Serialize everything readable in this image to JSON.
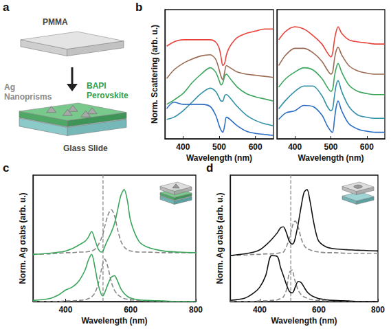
{
  "diagram": {
    "panel": "a",
    "labels": {
      "top_layer": "PMMA",
      "particles": "Ag Nanoprisms",
      "film": "BAPI Perovskite",
      "substrate": "Glass Slide"
    }
  },
  "chart_data": [
    {
      "type": "line",
      "panel": "b",
      "ylabel": "Norm. Scattering (arb. u.)",
      "xlabel": "Wavelength (nm)",
      "xlim": [
        350,
        650
      ],
      "xticks": [
        400,
        500,
        600
      ],
      "ylim": [
        0,
        6
      ],
      "tick_labels": "x",
      "grid": false,
      "x": [
        355,
        375,
        400,
        425,
        450,
        475,
        490,
        500,
        505,
        510,
        515,
        520,
        530,
        550,
        575,
        600,
        625,
        650
      ],
      "series": [
        {
          "color": "#e8433b",
          "line_style": "solid",
          "values": [
            4.3,
            4.5,
            4.6,
            4.6,
            4.6,
            4.6,
            4.5,
            4.2,
            3.8,
            3.4,
            3.5,
            3.9,
            4.3,
            4.7,
            4.9,
            5.0,
            5.1,
            5.1
          ]
        },
        {
          "color": "#9b6a52",
          "line_style": "solid",
          "values": [
            2.8,
            3.2,
            3.5,
            3.7,
            3.85,
            3.9,
            3.7,
            3.2,
            2.9,
            2.75,
            3.1,
            3.4,
            3.3,
            3.1,
            3.0,
            2.95,
            2.9,
            2.85
          ]
        },
        {
          "color": "#3ba55c",
          "line_style": "solid",
          "values": [
            1.6,
            1.8,
            2.1,
            2.6,
            3.0,
            3.3,
            3.1,
            2.7,
            2.5,
            2.6,
            2.9,
            3.0,
            2.8,
            2.4,
            2.1,
            1.95,
            1.85,
            1.75
          ]
        },
        {
          "color": "#2e8fa6",
          "line_style": "solid",
          "values": [
            0.9,
            1.0,
            1.3,
            1.7,
            2.1,
            2.35,
            2.2,
            1.9,
            1.75,
            1.75,
            2.0,
            2.05,
            1.9,
            1.5,
            1.1,
            0.85,
            0.7,
            0.6
          ]
        },
        {
          "color": "#2a6cc4",
          "line_style": "solid",
          "values": [
            1.4,
            1.7,
            1.6,
            1.6,
            1.6,
            1.5,
            1.1,
            0.6,
            0.4,
            0.3,
            0.6,
            1.0,
            0.9,
            0.6,
            0.35,
            0.25,
            0.2,
            0.15
          ]
        }
      ]
    },
    {
      "type": "line",
      "xlabel": "Wavelength (nm)",
      "xlim": [
        350,
        650
      ],
      "xticks": [
        400,
        500,
        600
      ],
      "ylim": [
        0,
        6
      ],
      "tick_labels": "x",
      "grid": false,
      "x": [
        355,
        375,
        400,
        425,
        450,
        475,
        490,
        500,
        505,
        510,
        515,
        520,
        530,
        550,
        575,
        600,
        625,
        650
      ],
      "series": [
        {
          "color": "#e8433b",
          "line_style": "solid",
          "values": [
            4.6,
            5.0,
            5.2,
            5.1,
            4.8,
            4.4,
            4.0,
            3.8,
            4.0,
            4.6,
            5.0,
            5.2,
            4.9,
            4.6,
            4.5,
            4.45,
            4.4,
            4.4
          ]
        },
        {
          "color": "#9b6a52",
          "line_style": "solid",
          "values": [
            3.4,
            3.9,
            4.2,
            4.2,
            4.0,
            3.6,
            3.2,
            3.0,
            3.1,
            3.7,
            4.1,
            4.25,
            3.9,
            3.4,
            3.15,
            3.05,
            3.0,
            3.0
          ]
        },
        {
          "color": "#3ba55c",
          "line_style": "solid",
          "values": [
            2.4,
            2.8,
            3.1,
            3.3,
            3.2,
            2.8,
            2.4,
            2.2,
            2.3,
            2.9,
            3.3,
            3.5,
            3.1,
            2.5,
            2.2,
            2.1,
            2.05,
            2.05
          ]
        },
        {
          "color": "#2e8fa6",
          "line_style": "solid",
          "values": [
            1.4,
            1.8,
            2.2,
            2.45,
            2.45,
            2.0,
            1.5,
            1.3,
            1.4,
            2.0,
            2.5,
            2.7,
            2.2,
            1.5,
            1.1,
            1.0,
            0.95,
            0.95
          ]
        },
        {
          "color": "#2a6cc4",
          "line_style": "solid",
          "values": [
            0.9,
            1.2,
            1.3,
            1.55,
            1.5,
            1.1,
            0.6,
            0.35,
            0.3,
            0.9,
            1.5,
            1.75,
            1.3,
            0.7,
            0.45,
            0.35,
            0.3,
            0.3
          ]
        }
      ]
    },
    {
      "type": "line",
      "panel": "c",
      "ylabel": "Norm. Ag σabs (arb. u.)",
      "xlabel": "Wavelength (nm)",
      "xlim": [
        300,
        800
      ],
      "xticks": [
        400,
        600,
        800
      ],
      "ylim": [
        0,
        2.2
      ],
      "tick_labels": "x",
      "grid": false,
      "x": [
        300,
        350,
        380,
        400,
        420,
        440,
        460,
        470,
        480,
        490,
        500,
        510,
        515,
        520,
        530,
        540,
        550,
        560,
        570,
        580,
        590,
        600,
        625,
        650,
        700,
        750,
        800
      ],
      "series": [
        {
          "color": "#888888",
          "line_style": "dashed",
          "x": [
            515,
            515
          ],
          "values": [
            0,
            2.2
          ]
        },
        {
          "color": "#888888",
          "line_style": "dashed",
          "values": [
            0.82,
            0.83,
            0.84,
            0.85,
            0.85,
            0.86,
            0.86,
            0.87,
            0.88,
            0.91,
            0.98,
            1.1,
            1.18,
            1.3,
            1.5,
            1.6,
            1.5,
            1.25,
            1.05,
            0.95,
            0.9,
            0.88,
            0.86,
            0.86,
            0.85,
            0.85,
            0.85
          ]
        },
        {
          "color": "#3ba55c",
          "line_style": "solid",
          "values": [
            0.82,
            0.84,
            0.86,
            0.88,
            0.92,
            0.98,
            1.05,
            1.12,
            1.22,
            1.08,
            0.92,
            0.86,
            0.88,
            0.95,
            1.08,
            1.2,
            1.35,
            1.6,
            1.85,
            1.95,
            1.75,
            1.4,
            1.05,
            0.95,
            0.88,
            0.86,
            0.85
          ]
        },
        {
          "color": "#888888",
          "line_style": "dashed",
          "values": [
            0,
            0,
            0,
            0.01,
            0.01,
            0.02,
            0.03,
            0.05,
            0.08,
            0.15,
            0.3,
            0.55,
            0.68,
            0.74,
            0.6,
            0.35,
            0.2,
            0.12,
            0.08,
            0.05,
            0.04,
            0.03,
            0.02,
            0.01,
            0,
            0,
            0
          ]
        },
        {
          "color": "#3ba55c",
          "line_style": "solid",
          "values": [
            0.02,
            0.05,
            0.12,
            0.2,
            0.25,
            0.35,
            0.55,
            0.72,
            0.82,
            0.6,
            0.3,
            0.12,
            0.1,
            0.15,
            0.3,
            0.42,
            0.45,
            0.35,
            0.22,
            0.14,
            0.09,
            0.06,
            0.03,
            0.02,
            0.01,
            0,
            0
          ]
        }
      ]
    },
    {
      "type": "line",
      "panel": "d",
      "ylabel": "Norm. Ag σabs (arb. u.)",
      "xlabel": "Wavelength (nm)",
      "xlim": [
        300,
        800
      ],
      "xticks": [
        400,
        600,
        800
      ],
      "ylim": [
        0,
        2.2
      ],
      "tick_labels": "x",
      "grid": false,
      "x": [
        300,
        350,
        380,
        400,
        420,
        440,
        460,
        470,
        480,
        490,
        500,
        510,
        515,
        520,
        530,
        540,
        550,
        560,
        570,
        580,
        590,
        600,
        625,
        650,
        700,
        750,
        800
      ],
      "series": [
        {
          "color": "#888888",
          "line_style": "dashed",
          "x": [
            505,
            505
          ],
          "values": [
            0,
            2.2
          ]
        },
        {
          "color": "#888888",
          "line_style": "dashed",
          "values": [
            0.8,
            0.81,
            0.82,
            0.82,
            0.83,
            0.83,
            0.84,
            0.85,
            0.86,
            0.95,
            1.1,
            1.3,
            1.38,
            1.4,
            1.3,
            1.1,
            0.98,
            0.92,
            0.9,
            0.88,
            0.87,
            0.86,
            0.85,
            0.85,
            0.84,
            0.84,
            0.84
          ]
        },
        {
          "color": "#111111",
          "line_style": "solid",
          "values": [
            0.8,
            0.83,
            0.86,
            0.9,
            0.98,
            1.08,
            1.2,
            1.28,
            1.3,
            1.2,
            1.05,
            1.0,
            1.02,
            1.1,
            1.35,
            1.65,
            1.9,
            1.95,
            1.75,
            1.45,
            1.2,
            1.05,
            0.95,
            0.92,
            0.9,
            0.89,
            0.88
          ]
        },
        {
          "color": "#888888",
          "line_style": "dashed",
          "values": [
            0,
            0,
            0,
            0.01,
            0.01,
            0.02,
            0.03,
            0.05,
            0.08,
            0.2,
            0.5,
            0.55,
            0.45,
            0.35,
            0.2,
            0.12,
            0.08,
            0.06,
            0.04,
            0.03,
            0.02,
            0.02,
            0.01,
            0.01,
            0,
            0,
            0
          ]
        },
        {
          "color": "#111111",
          "line_style": "solid",
          "values": [
            0.02,
            0.06,
            0.15,
            0.25,
            0.45,
            0.8,
            0.78,
            0.6,
            0.45,
            0.3,
            0.18,
            0.15,
            0.18,
            0.25,
            0.35,
            0.33,
            0.25,
            0.17,
            0.12,
            0.09,
            0.07,
            0.05,
            0.03,
            0.02,
            0.01,
            0,
            0
          ]
        }
      ]
    }
  ]
}
